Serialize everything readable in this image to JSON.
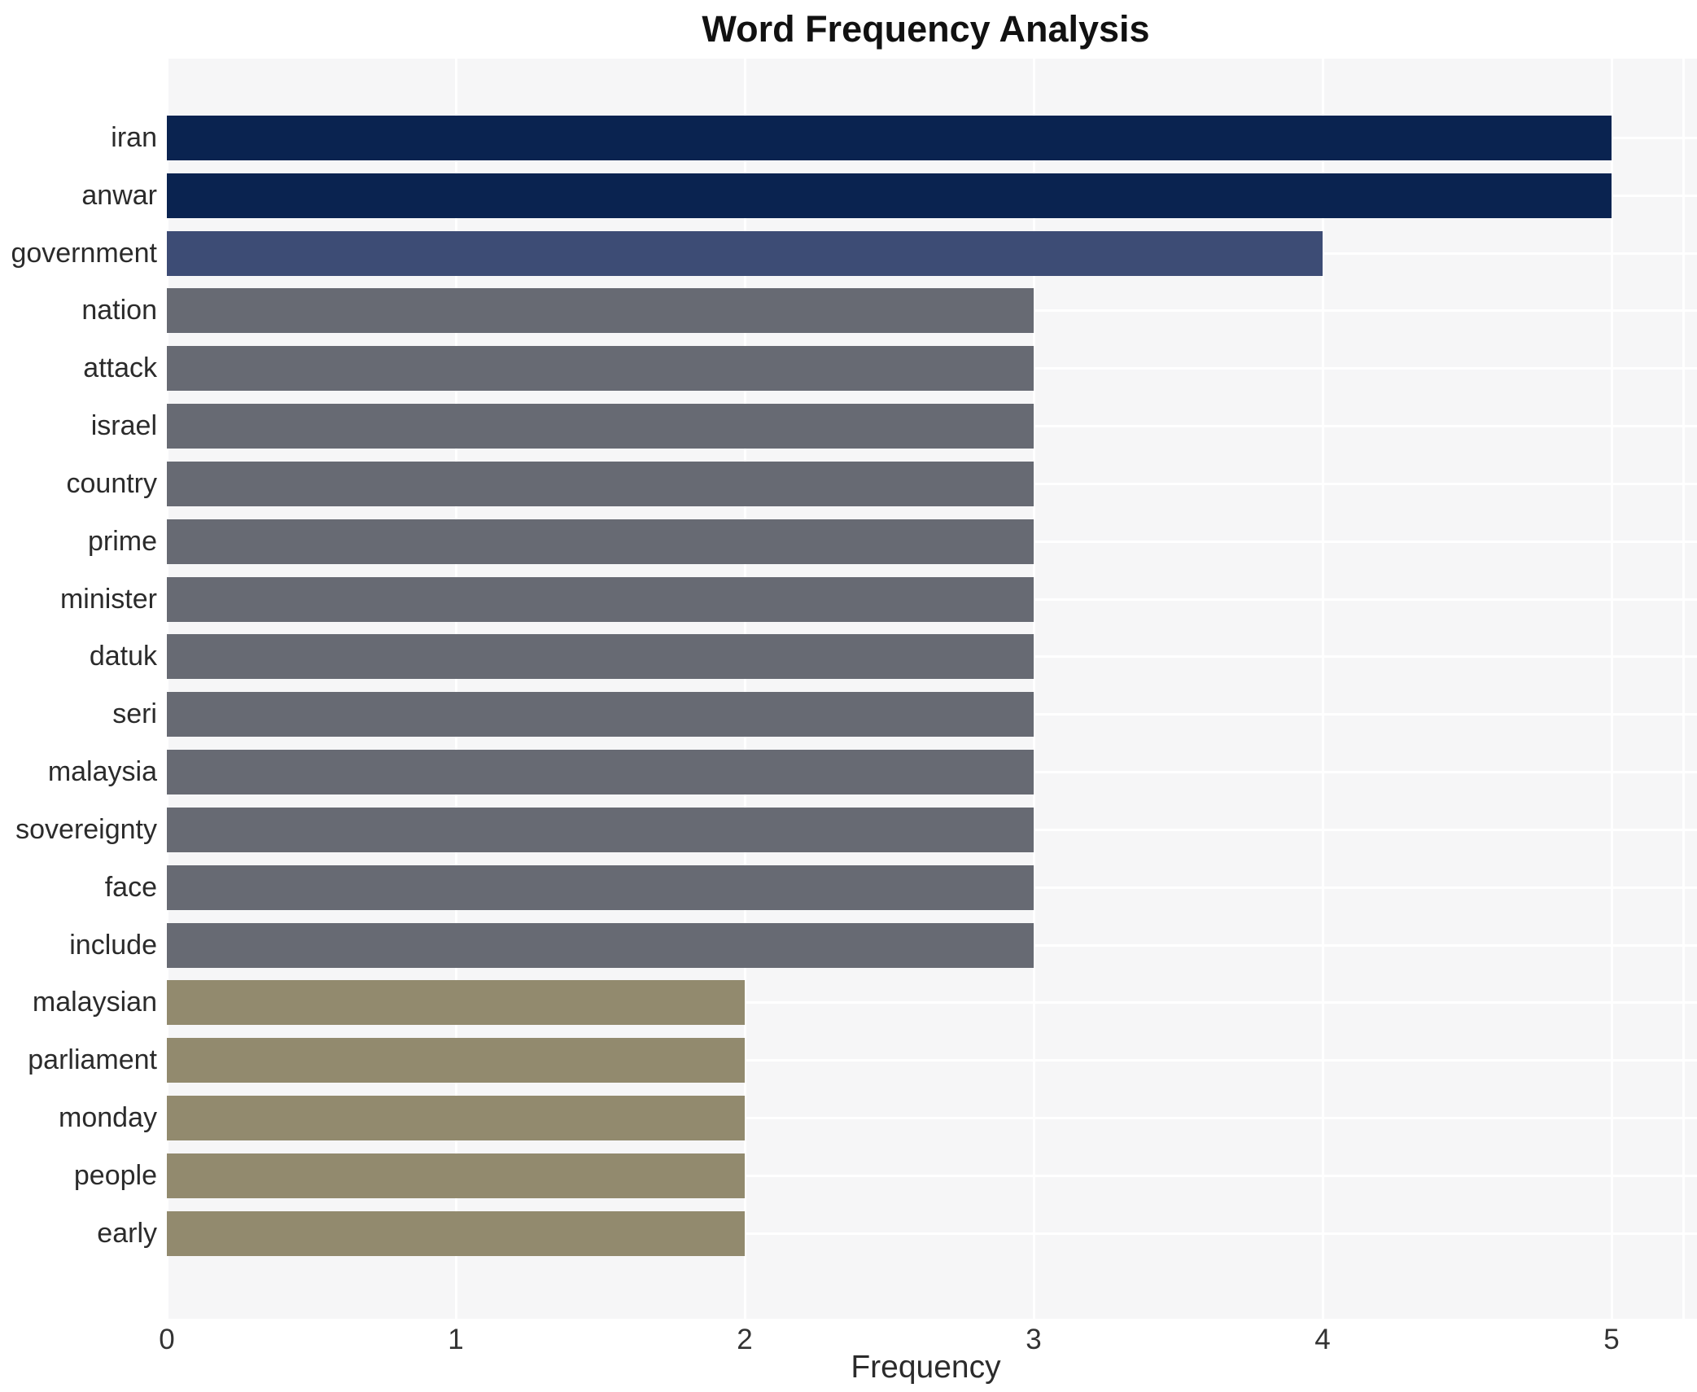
{
  "title": "Word Frequency Analysis",
  "x_axis": {
    "label": "Frequency",
    "ticks": [
      "0",
      "1",
      "2",
      "3",
      "4",
      "5"
    ],
    "tick_values": [
      0,
      1,
      2,
      3,
      4,
      5
    ]
  },
  "palette": {
    "freq_5_color": "#0a2350",
    "freq_4_color": "#3d4c75",
    "freq_3_color": "#676a73",
    "freq_2_color": "#928a6e",
    "plot_background": "#f6f6f7",
    "gridline_color": "#ffffff",
    "title_color": "#111111",
    "label_color": "#2b2b2b"
  },
  "bars": [
    {
      "label": "iran",
      "value": 5,
      "color": "#0a2350"
    },
    {
      "label": "anwar",
      "value": 5,
      "color": "#0a2350"
    },
    {
      "label": "government",
      "value": 4,
      "color": "#3d4c75"
    },
    {
      "label": "nation",
      "value": 3,
      "color": "#676a73"
    },
    {
      "label": "attack",
      "value": 3,
      "color": "#676a73"
    },
    {
      "label": "israel",
      "value": 3,
      "color": "#676a73"
    },
    {
      "label": "country",
      "value": 3,
      "color": "#676a73"
    },
    {
      "label": "prime",
      "value": 3,
      "color": "#676a73"
    },
    {
      "label": "minister",
      "value": 3,
      "color": "#676a73"
    },
    {
      "label": "datuk",
      "value": 3,
      "color": "#676a73"
    },
    {
      "label": "seri",
      "value": 3,
      "color": "#676a73"
    },
    {
      "label": "malaysia",
      "value": 3,
      "color": "#676a73"
    },
    {
      "label": "sovereignty",
      "value": 3,
      "color": "#676a73"
    },
    {
      "label": "face",
      "value": 3,
      "color": "#676a73"
    },
    {
      "label": "include",
      "value": 3,
      "color": "#676a73"
    },
    {
      "label": "malaysian",
      "value": 2,
      "color": "#928a6e"
    },
    {
      "label": "parliament",
      "value": 2,
      "color": "#928a6e"
    },
    {
      "label": "monday",
      "value": 2,
      "color": "#928a6e"
    },
    {
      "label": "people",
      "value": 2,
      "color": "#928a6e"
    },
    {
      "label": "early",
      "value": 2,
      "color": "#928a6e"
    }
  ],
  "chart_data": {
    "type": "bar",
    "orientation": "horizontal",
    "title": "Word Frequency Analysis",
    "xlabel": "Frequency",
    "ylabel": "",
    "categories": [
      "iran",
      "anwar",
      "government",
      "nation",
      "attack",
      "israel",
      "country",
      "prime",
      "minister",
      "datuk",
      "seri",
      "malaysia",
      "sovereignty",
      "face",
      "include",
      "malaysian",
      "parliament",
      "monday",
      "people",
      "early"
    ],
    "values": [
      5,
      5,
      4,
      3,
      3,
      3,
      3,
      3,
      3,
      3,
      3,
      3,
      3,
      3,
      3,
      2,
      2,
      2,
      2,
      2
    ],
    "xlim": [
      0,
      5.3
    ],
    "xticks": [
      0,
      1,
      2,
      3,
      4,
      5
    ],
    "grid": true,
    "gridline_color": "#ffffff",
    "plot_background": "#f6f6f7",
    "legend": false,
    "bar_colors_by_value": {
      "5": "#0a2350",
      "4": "#3d4c75",
      "3": "#676a73",
      "2": "#928a6e"
    }
  }
}
